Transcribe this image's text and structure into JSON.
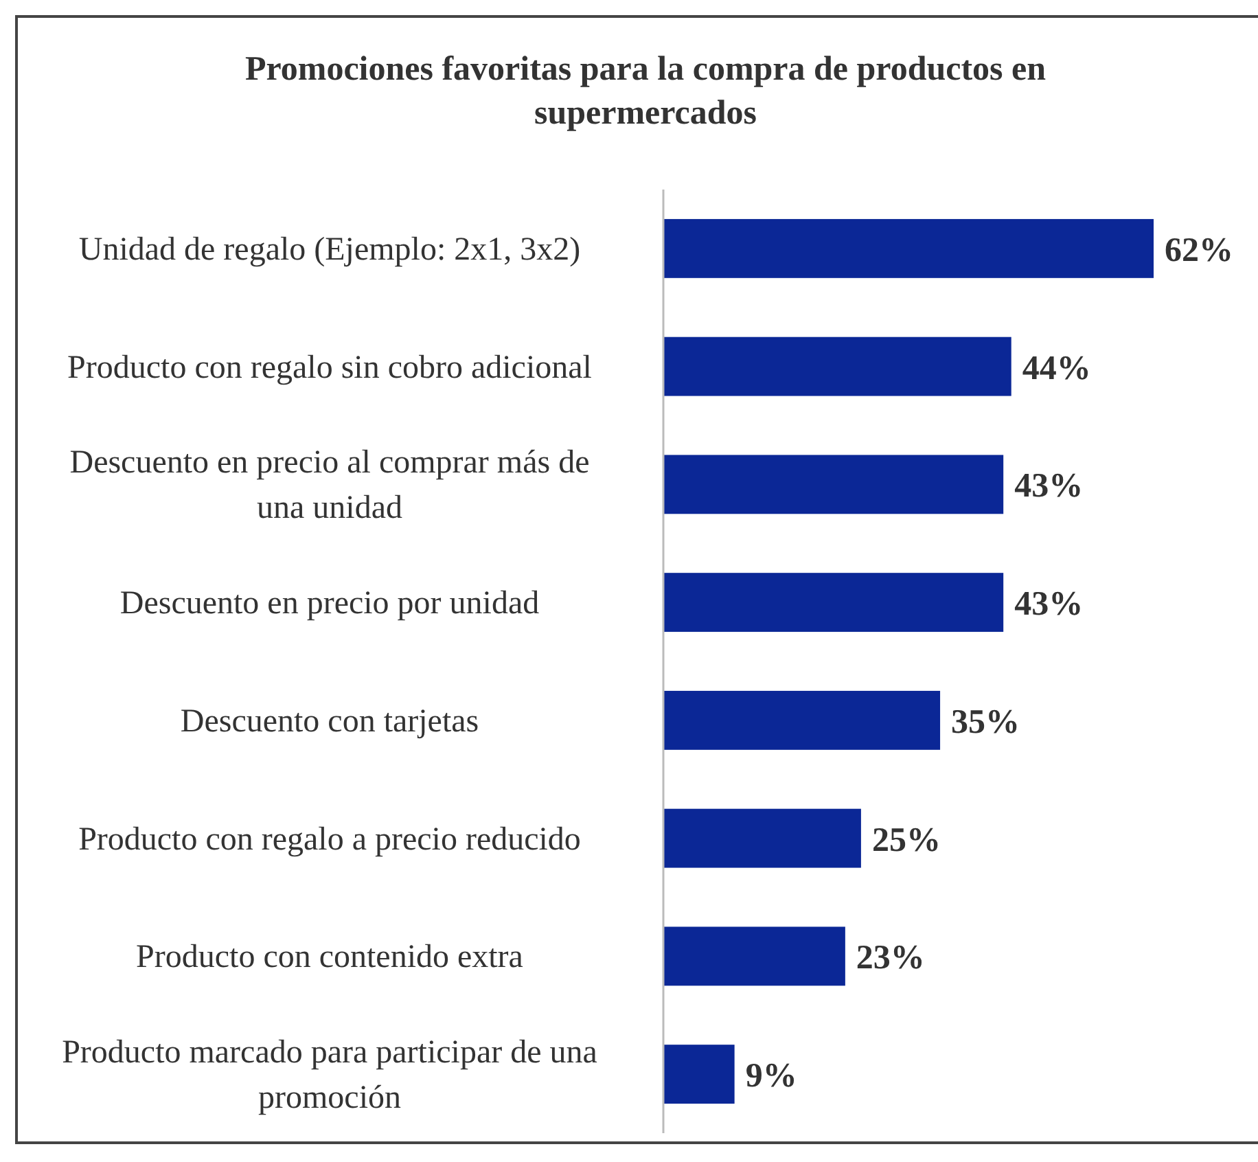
{
  "chart_data": {
    "type": "bar",
    "orientation": "horizontal",
    "title": "Promociones  favoritas para la compra  de productos en supermercados",
    "categories": [
      "Unidad de regalo (Ejemplo: 2x1, 3x2)",
      "Producto con regalo sin cobro adicional",
      "Descuento en precio al comprar más de una unidad",
      "Descuento en precio por unidad",
      "Descuento con tarjetas",
      "Producto con regalo a precio reducido",
      "Producto con contenido extra",
      "Producto marcado para participar de una promoción"
    ],
    "values": [
      62,
      44,
      43,
      43,
      35,
      25,
      23,
      9
    ],
    "value_labels": [
      "62%",
      "44%",
      "43%",
      "43%",
      "35%",
      "25%",
      "23%",
      "9%"
    ],
    "color": "#0b2796"
  }
}
